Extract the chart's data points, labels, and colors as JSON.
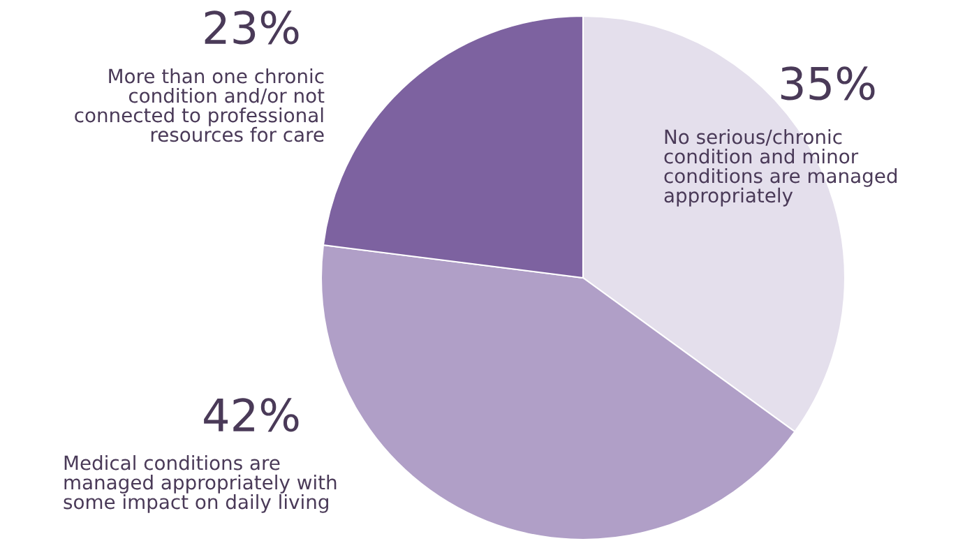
{
  "chart_data": {
    "type": "pie",
    "categories": [
      "No serious/chronic\ncondition and minor\nconditions are managed\nappropriately",
      "Medical conditions are\nmanaged appropriately with\nsome impact on daily living",
      "More than one chronic\ncondition and/or not\nconnected to professional\nresources for care"
    ],
    "values": [
      35,
      42,
      23
    ],
    "colors": [
      "#e4dfec",
      "#b09fc7",
      "#7d62a0"
    ],
    "value_labels": [
      "35%",
      "42%",
      "23%"
    ]
  }
}
